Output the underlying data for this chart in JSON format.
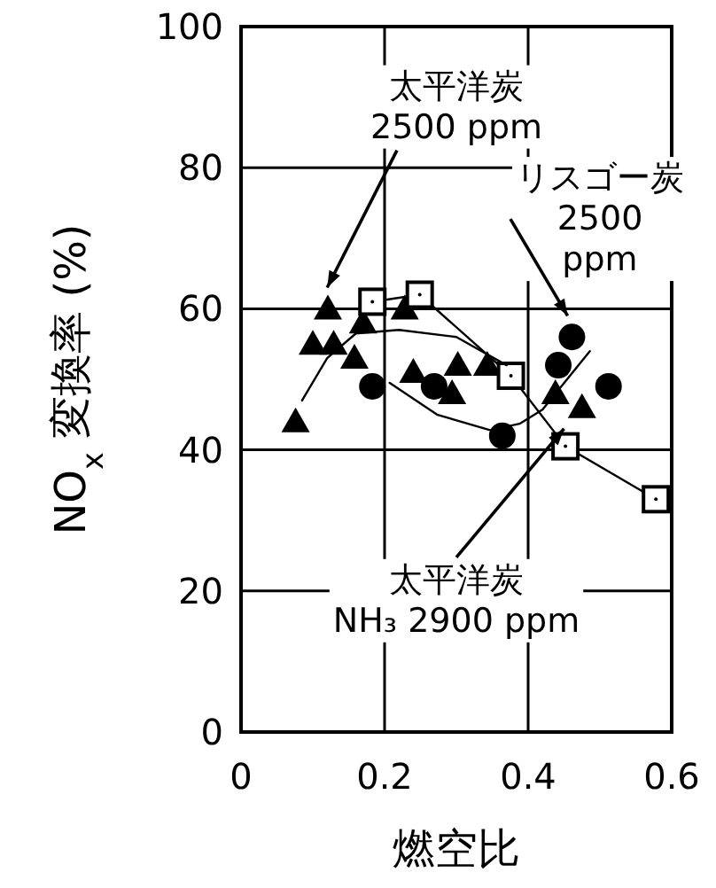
{
  "chart_data": {
    "type": "scatter",
    "xlabel": "燃空比",
    "ylabel": "NO$_{x}$ 変換率 (%)",
    "xlim": [
      0,
      0.6
    ],
    "ylim": [
      0,
      100
    ],
    "xticks": [
      0,
      0.2,
      0.4,
      0.6
    ],
    "yticks": [
      0,
      20,
      40,
      60,
      80,
      100
    ],
    "grid": true,
    "series": [
      {
        "marker": "triangle",
        "color": "#000000",
        "x": [
          0.076,
          0.1,
          0.129,
          0.121,
          0.17,
          0.158,
          0.228,
          0.24,
          0.294,
          0.302,
          0.343,
          0.438,
          0.475
        ],
        "values": [
          44,
          55,
          55,
          60,
          58,
          53,
          60,
          51,
          48,
          52,
          52,
          48,
          46
        ]
      },
      {
        "marker": "circle",
        "color": "#000000",
        "x": [
          0.183,
          0.269,
          0.364,
          0.461,
          0.442,
          0.512
        ],
        "values": [
          49,
          49,
          42,
          56,
          52,
          49
        ]
      },
      {
        "type": "line",
        "marker": "square",
        "color": "#000000",
        "x": [
          0.183,
          0.249,
          0.376,
          0.452,
          0.578
        ],
        "values": [
          61,
          62,
          50.5,
          40.5,
          33
        ]
      },
      {
        "type": "line",
        "marker": "none",
        "color": "#000000",
        "x": [
          0.085,
          0.12,
          0.16,
          0.22,
          0.3,
          0.37
        ],
        "values": [
          47,
          53,
          56.5,
          57,
          56,
          52
        ]
      },
      {
        "type": "line",
        "marker": "none",
        "color": "#000000",
        "x": [
          0.207,
          0.273,
          0.347,
          0.388,
          0.42,
          0.486
        ],
        "values": [
          49.5,
          45,
          42.8,
          43.7,
          45.7,
          54
        ]
      }
    ],
    "annotations": [
      {
        "text": "太平洋炭\n2500 ppm",
        "x": 0.12,
        "y": 63
      },
      {
        "text": "リスゴー炭\n2500\nppm",
        "x": 0.455,
        "y": 59
      },
      {
        "text": "太平洋炭\nNH₃ 2900 ppm",
        "x": 0.45,
        "y": 43
      }
    ]
  }
}
